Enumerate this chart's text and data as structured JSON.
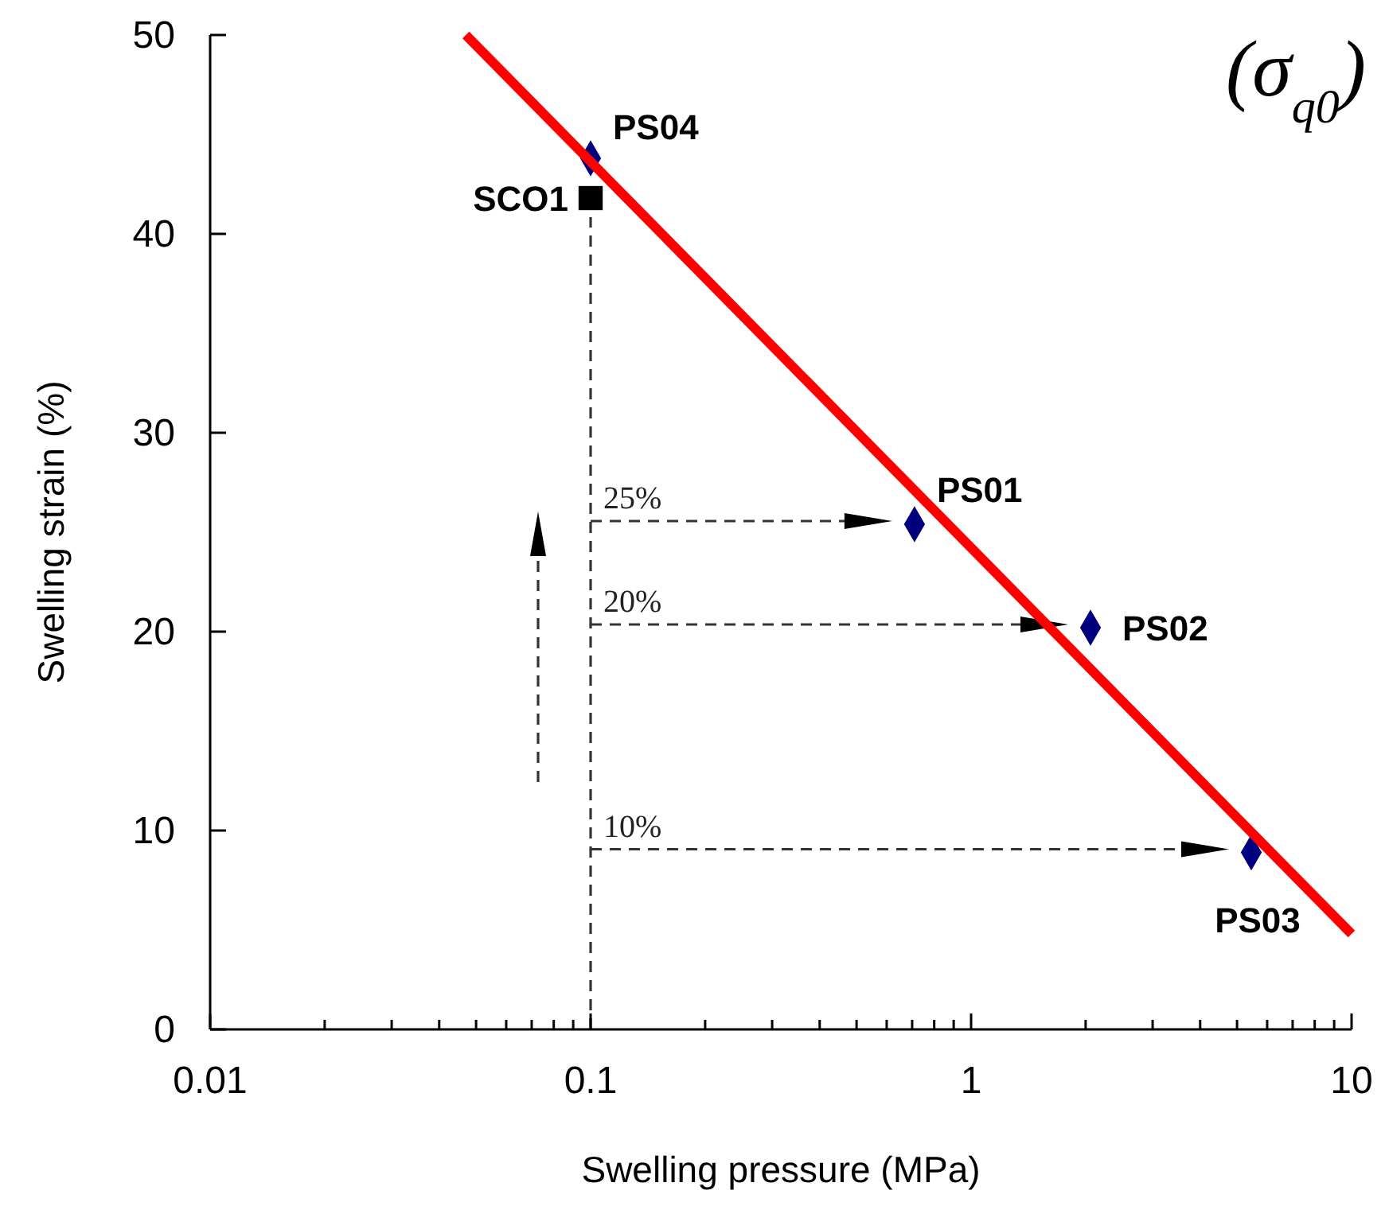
{
  "chart_data": {
    "type": "scatter",
    "xlabel": "Swelling pressure (MPa)",
    "ylabel": "Swelling strain (%)",
    "log": "x",
    "grid": false,
    "xlim": [
      0.01,
      10
    ],
    "ylim": [
      0,
      50
    ],
    "xticks": [
      0.01,
      {
        "value": 0.02,
        "label": null
      },
      {
        "value": 0.03,
        "label": null
      },
      {
        "value": 0.04,
        "label": null
      },
      {
        "value": 0.05,
        "label": null
      },
      {
        "value": 0.06,
        "label": null
      },
      {
        "value": 0.07,
        "label": null
      },
      {
        "value": 0.08,
        "label": null
      },
      {
        "value": 0.09,
        "label": null
      },
      0.1,
      {
        "value": 0.2,
        "label": null
      },
      {
        "value": 0.3,
        "label": null
      },
      {
        "value": 0.4,
        "label": null
      },
      {
        "value": 0.5,
        "label": null
      },
      {
        "value": 0.6,
        "label": null
      },
      {
        "value": 0.7,
        "label": null
      },
      {
        "value": 0.8,
        "label": null
      },
      {
        "value": 0.9,
        "label": null
      },
      1,
      {
        "value": 2,
        "label": null
      },
      {
        "value": 3,
        "label": null
      },
      {
        "value": 4,
        "label": null
      },
      {
        "value": 5,
        "label": null
      },
      {
        "value": 6,
        "label": null
      },
      {
        "value": 7,
        "label": null
      },
      {
        "value": 8,
        "label": null
      },
      {
        "value": 9,
        "label": null
      },
      10
    ],
    "yticks": [
      0,
      10,
      20,
      30,
      40,
      50
    ],
    "series": [
      {
        "color": "#00007f",
        "marker": "diamond",
        "x": [
          0.1,
          0.71,
          2.06,
          5.45
        ],
        "values": [
          43.8,
          25.4,
          20.2,
          8.9
        ],
        "value_labels": [
          "PS04",
          "PS01",
          "PS02",
          "PS03"
        ]
      },
      {
        "color": "#000000",
        "marker": "square",
        "x": [
          0.1
        ],
        "values": [
          41.8
        ],
        "value_labels": [
          "SCO1"
        ]
      },
      {
        "type": "line",
        "color": "#ff0000",
        "marker": "none",
        "line_style": "solid",
        "x": [
          0.047,
          10
        ],
        "values": [
          50,
          4.8
        ]
      }
    ],
    "ref_lines": [
      {
        "axis": "x",
        "value": 0.1,
        "color": "#333333",
        "line_style": "dashed"
      }
    ],
    "annotations": [
      "25%",
      "20%",
      "10%",
      "(σ$_{q0}$)"
    ]
  }
}
